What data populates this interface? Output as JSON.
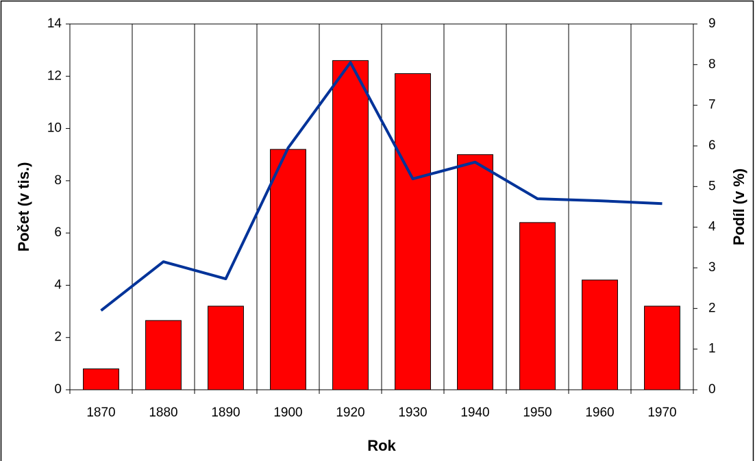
{
  "chart_data": {
    "type": "bar",
    "x_label": "Rok",
    "y_label": "Počet (v tis.)",
    "y2_label": "Podíl (v %)",
    "categories": [
      "1870",
      "1880",
      "1890",
      "1900",
      "1920",
      "1930",
      "1940",
      "1950",
      "1960",
      "1970"
    ],
    "series": [
      {
        "name": "Počet",
        "type": "bar",
        "color": "#ff0000",
        "values": [
          0.8,
          2.65,
          3.2,
          9.2,
          12.6,
          12.1,
          9.0,
          6.4,
          4.2,
          3.2
        ]
      },
      {
        "name": "Podíl",
        "type": "line",
        "axis": "y2",
        "color": "#003399",
        "values": [
          1.95,
          3.15,
          2.73,
          5.95,
          8.05,
          5.19,
          5.6,
          4.7,
          4.65,
          4.58
        ]
      }
    ],
    "ylim": [
      0,
      14
    ],
    "yticks": [
      0,
      2,
      4,
      6,
      8,
      10,
      12,
      14
    ],
    "y2lim": [
      0,
      9
    ],
    "y2ticks": [
      0,
      1,
      2,
      3,
      4,
      5,
      6,
      7,
      8,
      9
    ],
    "grid": "x"
  }
}
